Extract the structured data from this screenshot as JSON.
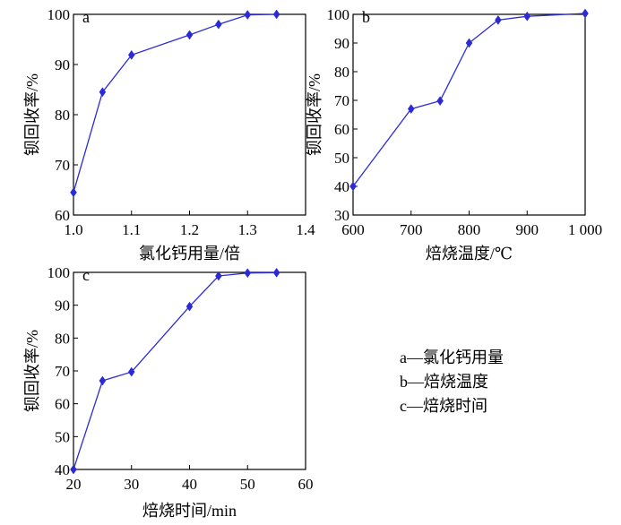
{
  "chart_data": [
    {
      "type": "line",
      "panel_label": "a",
      "xlabel": "氯化钙用量/倍",
      "ylabel": "钡回收率/%",
      "xlim": [
        1.0,
        1.4
      ],
      "ylim": [
        60,
        100
      ],
      "xticks": [
        1.0,
        1.1,
        1.2,
        1.3,
        1.4
      ],
      "yticks": [
        60,
        70,
        80,
        90,
        100
      ],
      "xtick_labels": [
        "1.0",
        "1.1",
        "1.2",
        "1.3",
        "1.4"
      ],
      "ytick_labels": [
        "60",
        "70",
        "80",
        "90",
        "100"
      ],
      "series": [
        {
          "x": [
            1.0,
            1.05,
            1.1,
            1.2,
            1.25,
            1.3,
            1.35
          ],
          "y": [
            64.5,
            84.5,
            91.9,
            95.9,
            98.0,
            99.9,
            100.0
          ]
        }
      ],
      "color": "#2b2bd6"
    },
    {
      "type": "line",
      "panel_label": "b",
      "xlabel": "焙烧温度/℃",
      "ylabel": "钡回收率/%",
      "xlim": [
        600,
        1000
      ],
      "ylim": [
        30,
        100
      ],
      "xticks": [
        600,
        700,
        800,
        900,
        1000
      ],
      "yticks": [
        30,
        40,
        50,
        60,
        70,
        80,
        90,
        100
      ],
      "xtick_labels": [
        "600",
        "700",
        "800",
        "900",
        "1 000"
      ],
      "ytick_labels": [
        "30",
        "40",
        "50",
        "60",
        "70",
        "80",
        "90",
        "100"
      ],
      "series": [
        {
          "x": [
            600,
            700,
            750,
            800,
            850,
            900,
            1000
          ],
          "y": [
            40.0,
            67.0,
            69.8,
            90.0,
            98.0,
            99.3,
            100.3
          ]
        }
      ],
      "color": "#2b2bd6"
    },
    {
      "type": "line",
      "panel_label": "c",
      "xlabel": "焙烧时间/min",
      "ylabel": "钡回收率/%",
      "xlim": [
        20,
        60
      ],
      "ylim": [
        40,
        100
      ],
      "xticks": [
        20,
        30,
        40,
        50,
        60
      ],
      "yticks": [
        40,
        50,
        60,
        70,
        80,
        90,
        100
      ],
      "xtick_labels": [
        "20",
        "30",
        "40",
        "50",
        "60"
      ],
      "ytick_labels": [
        "40",
        "50",
        "60",
        "70",
        "80",
        "90",
        "100"
      ],
      "series": [
        {
          "x": [
            20,
            25,
            30,
            40,
            45,
            50,
            55
          ],
          "y": [
            40.0,
            67.0,
            69.7,
            89.6,
            98.9,
            99.8,
            99.9
          ]
        }
      ],
      "color": "#2b2bd6"
    }
  ],
  "legend": [
    {
      "key": "a",
      "text": "a—氯化钙用量"
    },
    {
      "key": "b",
      "text": "b—焙烧温度"
    },
    {
      "key": "c",
      "text": "c—焙烧时间"
    }
  ]
}
